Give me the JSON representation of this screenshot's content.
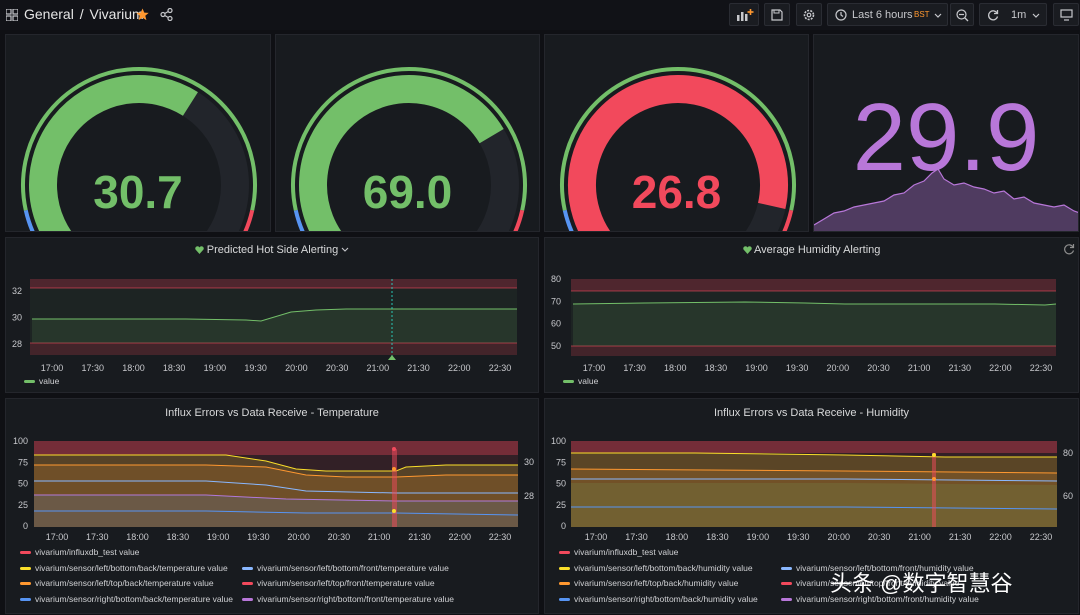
{
  "topbar": {
    "crumb_folder": "General",
    "crumb_sep": "/",
    "crumb_dash": "Vivarium",
    "time_range": "Last 6 hours",
    "timezone": "BST",
    "refresh": "1m",
    "icons": [
      "apps-icon",
      "star-icon",
      "share-icon",
      "add-panel-icon",
      "save-icon",
      "settings-icon",
      "clock-icon",
      "zoom-out-icon",
      "refresh-icon",
      "chevron-down-icon",
      "tv-mode-icon"
    ]
  },
  "gauges": [
    {
      "value": "30.7",
      "color": "#73bf69",
      "fraction": 0.62
    },
    {
      "value": "69.0",
      "color": "#73bf69",
      "fraction": 0.72
    },
    {
      "value": "26.8",
      "color": "#f2495c",
      "fraction": 0.88
    }
  ],
  "stat": {
    "value": "29.9",
    "color": "#b877d9"
  },
  "hot_side": {
    "title": "Predicted Hot Side Alerting",
    "y_ticks": [
      "32",
      "30",
      "28"
    ],
    "x_ticks": [
      "17:00",
      "17:30",
      "18:00",
      "18:30",
      "19:00",
      "19:30",
      "20:00",
      "20:30",
      "21:00",
      "21:30",
      "22:00",
      "22:30"
    ],
    "legend": [
      "value"
    ]
  },
  "humidity": {
    "title": "Average Humidity Alerting",
    "y_ticks": [
      "80",
      "70",
      "60",
      "50"
    ],
    "x_ticks": [
      "17:00",
      "17:30",
      "18:00",
      "18:30",
      "19:00",
      "19:30",
      "20:00",
      "20:30",
      "21:00",
      "21:30",
      "22:00",
      "22:30"
    ],
    "legend": [
      "value"
    ]
  },
  "influx_temp": {
    "title": "Influx Errors vs Data Receive - Temperature",
    "y_left": [
      "100",
      "75",
      "50",
      "25",
      "0"
    ],
    "y_right": [
      "30",
      "28"
    ],
    "x_ticks": [
      "17:00",
      "17:30",
      "18:00",
      "18:30",
      "19:00",
      "19:30",
      "20:00",
      "20:30",
      "21:00",
      "21:30",
      "22:00",
      "22:30"
    ],
    "legend": [
      {
        "name": "vivarium/influxdb_test value",
        "color": "#f2495c"
      },
      {
        "name": "vivarium/sensor/left/bottom/back/temperature value",
        "color": "#fade2a"
      },
      {
        "name": "vivarium/sensor/left/bottom/front/temperature value",
        "color": "#8ab8ff"
      },
      {
        "name": "vivarium/sensor/left/top/back/temperature value",
        "color": "#ff9830"
      },
      {
        "name": "vivarium/sensor/left/top/front/temperature value",
        "color": "#f2495c"
      },
      {
        "name": "vivarium/sensor/right/bottom/back/temperature value",
        "color": "#5794f2"
      },
      {
        "name": "vivarium/sensor/right/bottom/front/temperature value",
        "color": "#b877d9"
      }
    ]
  },
  "influx_hum": {
    "title": "Influx Errors vs Data Receive - Humidity",
    "y_left": [
      "100",
      "75",
      "50",
      "25",
      "0"
    ],
    "y_right": [
      "80",
      "60"
    ],
    "x_ticks": [
      "17:00",
      "17:30",
      "18:00",
      "18:30",
      "19:00",
      "19:30",
      "20:00",
      "20:30",
      "21:00",
      "21:30",
      "22:00",
      "22:30"
    ],
    "legend": [
      {
        "name": "vivarium/influxdb_test value",
        "color": "#f2495c"
      },
      {
        "name": "vivarium/sensor/left/bottom/back/humidity value",
        "color": "#fade2a"
      },
      {
        "name": "vivarium/sensor/left/bottom/front/humidity value",
        "color": "#8ab8ff"
      },
      {
        "name": "vivarium/sensor/left/top/back/humidity value",
        "color": "#ff9830"
      },
      {
        "name": "vivarium/sensor/left/top/front/humidity value",
        "color": "#f2495c"
      },
      {
        "name": "vivarium/sensor/right/bottom/back/humidity value",
        "color": "#5794f2"
      },
      {
        "name": "vivarium/sensor/right/bottom/front/humidity value",
        "color": "#b877d9"
      }
    ]
  },
  "watermark": "头条 @数字智慧谷"
}
